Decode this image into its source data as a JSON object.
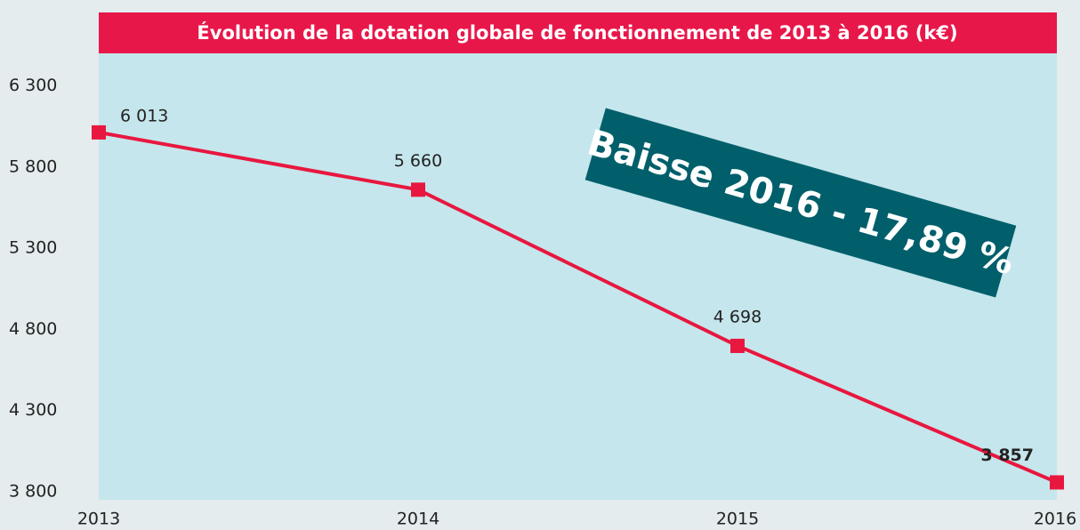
{
  "chart_data": {
    "type": "line",
    "title": "Évolution de la dotation globale de fonctionnement de 2013 à 2016 (k€)",
    "annotation": "Baisse 2016 - 17,89 %",
    "x": [
      2013,
      2014,
      2015,
      2016
    ],
    "series": [
      {
        "name": "Dotation globale de fonctionnement",
        "color": "#e8173f",
        "values": [
          6013,
          5660,
          4698,
          3857
        ],
        "value_labels": [
          "6 013",
          "5 660",
          "4 698",
          "3 857"
        ]
      }
    ],
    "xlim": [
      2013,
      2016
    ],
    "xticks": [
      2013,
      2014,
      2015,
      2016
    ],
    "ylim": [
      3750,
      6500
    ],
    "yticks": [
      {
        "value": 3800,
        "label": "3 800"
      },
      {
        "value": 4300,
        "label": "4 300"
      },
      {
        "value": 4800,
        "label": "4 800"
      },
      {
        "value": 5300,
        "label": "5 300"
      },
      {
        "value": 5800,
        "label": "5 800"
      },
      {
        "value": 6300,
        "label": "6 300"
      }
    ]
  }
}
